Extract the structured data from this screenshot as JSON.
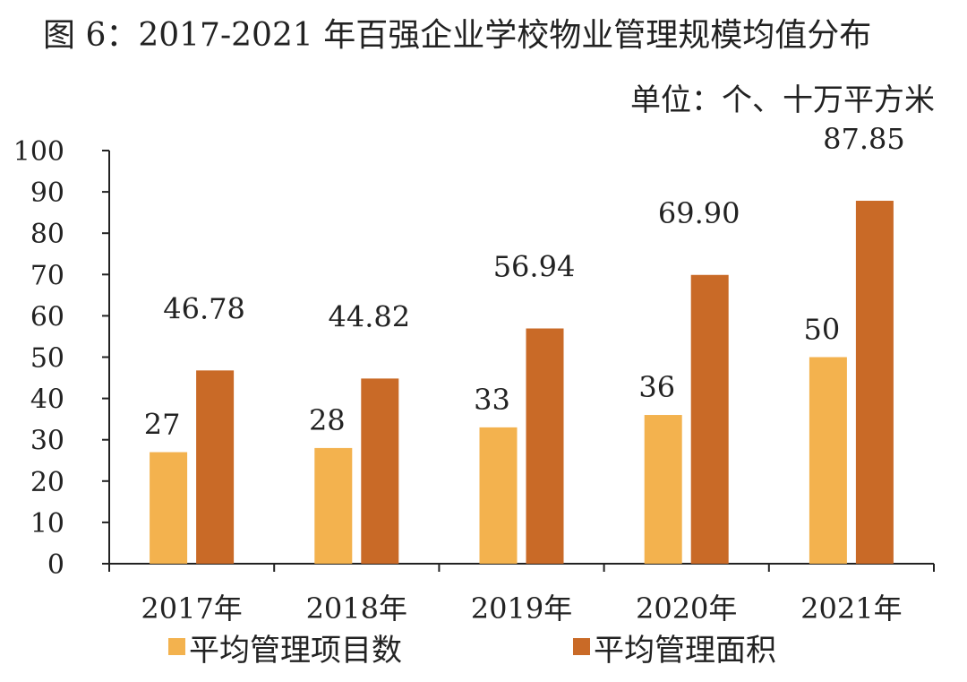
{
  "title": "图 6：2017-2021 年百强企业学校物业管理规模均值分布",
  "unit": "单位：个、十万平方米",
  "colors": {
    "series1": "#F3B24E",
    "series2": "#C96A27",
    "axis": "#222222"
  },
  "chart_data": {
    "type": "bar",
    "title": "图 6：2017-2021 年百强企业学校物业管理规模均值分布",
    "ylabel": "单位：个、十万平方米",
    "xlabel": "",
    "ylim": [
      0,
      100
    ],
    "yticks": [
      0,
      10,
      20,
      30,
      40,
      50,
      60,
      70,
      80,
      90,
      100
    ],
    "categories": [
      "2017年",
      "2018年",
      "2019年",
      "2020年",
      "2021年"
    ],
    "series": [
      {
        "name": "平均管理项目数",
        "values": [
          27,
          28,
          33,
          36,
          50
        ],
        "labels": [
          "27",
          "28",
          "33",
          "36",
          "50"
        ]
      },
      {
        "name": "平均管理面积",
        "values": [
          46.78,
          44.82,
          56.94,
          69.9,
          87.85
        ],
        "labels": [
          "46.78",
          "44.82",
          "56.94",
          "69.90",
          "87.85"
        ]
      }
    ],
    "legend": "bottom"
  }
}
